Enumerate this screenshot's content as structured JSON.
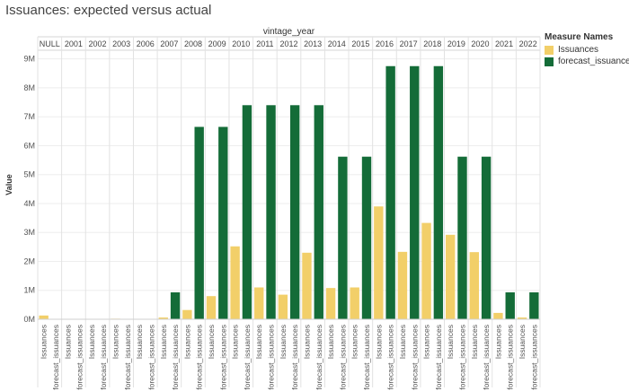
{
  "title": "Issuances: expected versus actual",
  "colors": {
    "issuances": "#f2cf69",
    "forecast_issuances": "#146c38"
  },
  "legend": {
    "title": "Measure Names",
    "items": [
      {
        "label": "Issuances",
        "color": "#f2cf69"
      },
      {
        "label": "forecast_issuances",
        "color": "#146c38"
      }
    ]
  },
  "chart_data": {
    "type": "bar",
    "title": "Issuances: expected versus actual",
    "column_header": "vintage_year",
    "ylabel": "Value",
    "ylim": [
      0,
      9300000
    ],
    "yticks": [
      0,
      1000000,
      2000000,
      3000000,
      4000000,
      5000000,
      6000000,
      7000000,
      8000000,
      9000000
    ],
    "ytick_labels": [
      "0M",
      "1M",
      "2M",
      "3M",
      "4M",
      "5M",
      "6M",
      "7M",
      "8M",
      "9M"
    ],
    "categories": [
      "NULL",
      "2001",
      "2002",
      "2003",
      "2006",
      "2007",
      "2008",
      "2009",
      "2010",
      "2011",
      "2012",
      "2013",
      "2014",
      "2015",
      "2016",
      "2017",
      "2018",
      "2019",
      "2020",
      "2021",
      "2022"
    ],
    "measure_labels": [
      "Issuances",
      "forecast_issuances"
    ],
    "series": [
      {
        "name": "Issuances",
        "values": [
          130000,
          0,
          0,
          20000,
          0,
          60000,
          320000,
          800000,
          2520000,
          1100000,
          850000,
          2300000,
          1080000,
          1100000,
          3900000,
          2330000,
          3330000,
          2920000,
          2320000,
          220000,
          60000
        ]
      },
      {
        "name": "forecast_issuances",
        "values": [
          0,
          0,
          0,
          0,
          0,
          930000,
          6650000,
          6650000,
          7400000,
          7400000,
          7400000,
          7400000,
          5620000,
          5620000,
          8750000,
          8750000,
          8750000,
          5620000,
          5620000,
          930000,
          930000
        ]
      }
    ],
    "grid": true,
    "legend_position": "top-right"
  }
}
